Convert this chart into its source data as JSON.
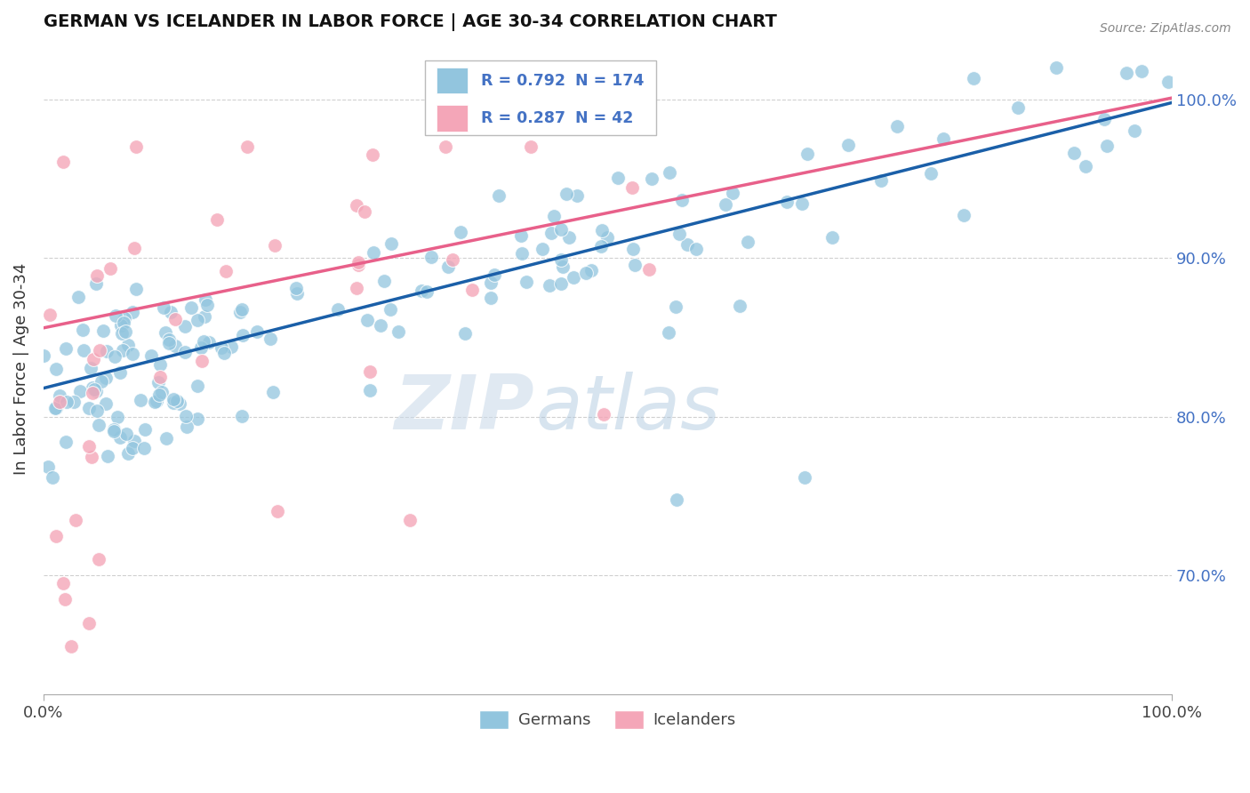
{
  "title": "GERMAN VS ICELANDER IN LABOR FORCE | AGE 30-34 CORRELATION CHART",
  "source": "Source: ZipAtlas.com",
  "ylabel": "In Labor Force | Age 30-34",
  "legend_label1": "Germans",
  "legend_label2": "Icelanders",
  "R1": 0.792,
  "N1": 174,
  "R2": 0.287,
  "N2": 42,
  "blue_color": "#92c5de",
  "pink_color": "#f4a6b8",
  "blue_line_color": "#1a5fa8",
  "pink_line_color": "#e8608a",
  "text_blue": "#4472c4",
  "xlim": [
    0.0,
    1.0
  ],
  "ylim": [
    0.625,
    1.035
  ],
  "right_yticks": [
    0.7,
    0.8,
    0.9,
    1.0
  ],
  "right_ytick_labels": [
    "70.0%",
    "80.0%",
    "90.0%",
    "100.0%"
  ],
  "figsize": [
    14.06,
    8.92
  ],
  "dpi": 100,
  "watermark_zip": "ZIP",
  "watermark_atlas": "atlas",
  "background_color": "#ffffff",
  "grid_color": "#d0d0d0",
  "blue_line_intercept": 0.818,
  "blue_line_slope": 0.18,
  "pink_line_intercept": 0.856,
  "pink_line_slope": 0.145
}
